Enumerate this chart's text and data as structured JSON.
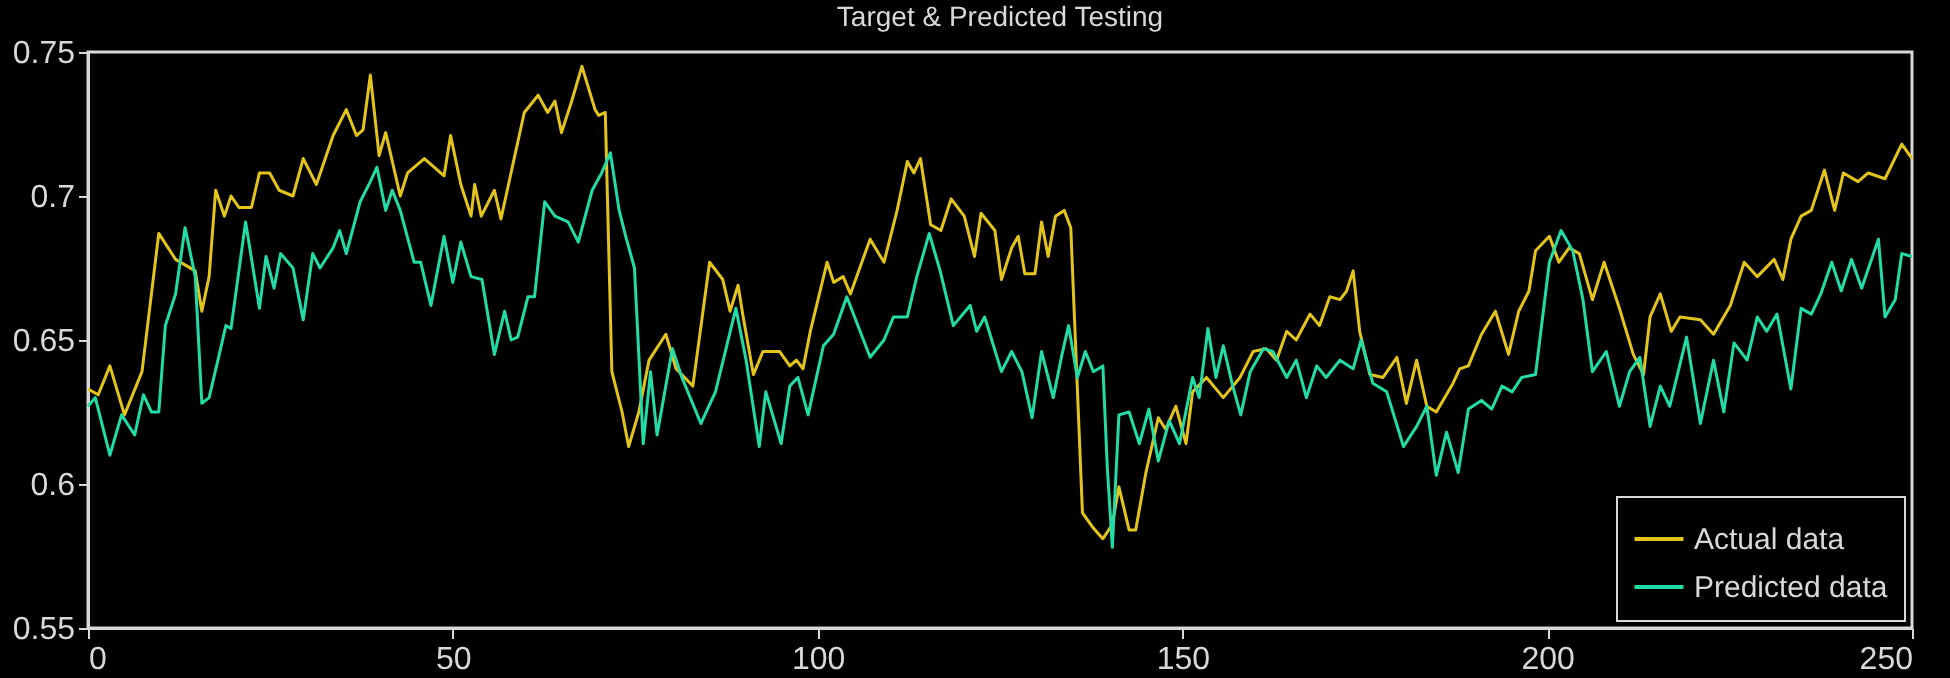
{
  "chart_data": {
    "type": "line",
    "title": "Target & Predicted Testing",
    "xlim": [
      0,
      250
    ],
    "ylim": [
      0.55,
      0.75
    ],
    "xticks": [
      0,
      50,
      100,
      150,
      200,
      250
    ],
    "yticks": [
      0.55,
      0.6,
      0.65,
      0.7,
      0.75
    ],
    "grid": false,
    "legend": "bottom right",
    "marker": "none",
    "line_style": "solid",
    "series": [
      {
        "name": "Actual data",
        "color": "#e3c41c",
        "x": [
          0,
          1.4,
          3,
          5,
          7.4,
          9.7,
          12,
          14.7,
          15.6,
          16.6,
          17.5,
          18.7,
          19.6,
          20.7,
          22.4,
          23.5,
          24.9,
          26.2,
          28.1,
          29.5,
          31.3,
          33.6,
          35.4,
          36.8,
          37.7,
          38.7,
          39.9,
          40.8,
          42.8,
          43.8,
          46.1,
          48.8,
          49.7,
          51.1,
          52.5,
          53,
          53.9,
          55.7,
          56.6,
          58.5,
          59.8,
          61.7,
          63,
          64,
          64.9,
          66.3,
          67.7,
          69.5,
          70,
          70.9,
          71.8,
          73.2,
          74.1,
          75.5,
          76.9,
          79.2,
          80.6,
          82.9,
          85.2,
          87,
          88,
          89.1,
          89.8,
          91.2,
          92.5,
          94.8,
          96.2,
          97.1,
          98,
          99,
          101.3,
          102.2,
          103.5,
          104.5,
          107.2,
          109.1,
          110.9,
          112.3,
          113.2,
          114.1,
          115.5,
          116.9,
          118.3,
          120.1,
          121.5,
          122.4,
          124.3,
          125.2,
          126.6,
          127.5,
          128.4,
          129.8,
          130.7,
          131.6,
          132.6,
          133.8,
          134.7,
          136.3,
          137.7,
          139.1,
          140.4,
          141.3,
          142.7,
          143.6,
          145,
          146.7,
          147.7,
          149.1,
          150.5,
          151.4,
          153.3,
          155.6,
          157.9,
          159.7,
          161.5,
          162.9,
          164.3,
          165.6,
          167.5,
          168.8,
          170.2,
          171.6,
          172.5,
          173.4,
          174.3,
          175.7,
          177.5,
          179.4,
          180.7,
          182.1,
          183.5,
          184.8,
          187.1,
          188,
          189.2,
          191,
          192.9,
          194.7,
          196.1,
          197.5,
          198.4,
          200.3,
          201.6,
          203,
          204.4,
          206.2,
          207.8,
          209.9,
          211.8,
          213.2,
          214.1,
          215.5,
          217,
          218.2,
          221,
          222.8,
          225.1,
          227,
          228.8,
          231.1,
          232.3,
          233.4,
          234.8,
          236.2,
          238,
          239.4,
          240.6,
          242.6,
          244,
          246.3,
          248.6,
          250
        ],
        "values": [
          0.633,
          0.631,
          0.641,
          0.624,
          0.639,
          0.687,
          0.678,
          0.674,
          0.66,
          0.672,
          0.702,
          0.693,
          0.7,
          0.696,
          0.696,
          0.708,
          0.708,
          0.702,
          0.7,
          0.713,
          0.704,
          0.721,
          0.73,
          0.721,
          0.723,
          0.742,
          0.714,
          0.722,
          0.7,
          0.708,
          0.713,
          0.707,
          0.721,
          0.704,
          0.693,
          0.704,
          0.693,
          0.702,
          0.692,
          0.714,
          0.729,
          0.735,
          0.729,
          0.733,
          0.722,
          0.733,
          0.745,
          0.73,
          0.728,
          0.729,
          0.639,
          0.625,
          0.613,
          0.625,
          0.643,
          0.652,
          0.64,
          0.634,
          0.677,
          0.671,
          0.66,
          0.669,
          0.658,
          0.638,
          0.646,
          0.646,
          0.641,
          0.643,
          0.64,
          0.653,
          0.677,
          0.67,
          0.672,
          0.666,
          0.685,
          0.677,
          0.695,
          0.712,
          0.708,
          0.713,
          0.69,
          0.688,
          0.699,
          0.693,
          0.679,
          0.694,
          0.688,
          0.671,
          0.682,
          0.686,
          0.673,
          0.673,
          0.691,
          0.679,
          0.693,
          0.695,
          0.689,
          0.59,
          0.585,
          0.581,
          0.586,
          0.599,
          0.584,
          0.584,
          0.604,
          0.623,
          0.619,
          0.627,
          0.614,
          0.632,
          0.637,
          0.63,
          0.637,
          0.646,
          0.647,
          0.643,
          0.653,
          0.65,
          0.659,
          0.655,
          0.665,
          0.664,
          0.667,
          0.674,
          0.653,
          0.638,
          0.637,
          0.644,
          0.628,
          0.643,
          0.627,
          0.625,
          0.635,
          0.64,
          0.641,
          0.652,
          0.66,
          0.645,
          0.66,
          0.667,
          0.681,
          0.686,
          0.677,
          0.682,
          0.68,
          0.664,
          0.677,
          0.661,
          0.645,
          0.638,
          0.658,
          0.666,
          0.653,
          0.658,
          0.657,
          0.652,
          0.662,
          0.677,
          0.672,
          0.678,
          0.671,
          0.685,
          0.693,
          0.695,
          0.709,
          0.695,
          0.708,
          0.705,
          0.708,
          0.706,
          0.718,
          0.713
        ]
      },
      {
        "name": "Predicted data",
        "color": "#22dba6",
        "x": [
          0,
          1,
          3,
          4.6,
          6.4,
          7.6,
          8.7,
          9.7,
          10.6,
          12,
          13.3,
          14.7,
          15.6,
          16.6,
          17.9,
          18.9,
          19.6,
          21.6,
          23.5,
          24.4,
          25.5,
          26.4,
          28.1,
          29.5,
          30.8,
          31.8,
          33.6,
          34.5,
          35.4,
          37.3,
          38.7,
          39.6,
          40.8,
          41.7,
          42.8,
          44.7,
          45.6,
          47,
          48.8,
          50,
          51.1,
          52.5,
          54,
          55.7,
          57.1,
          58,
          58.9,
          60.3,
          61.2,
          62.6,
          64,
          65.8,
          67.2,
          69.1,
          70.4,
          71.6,
          72.8,
          73.7,
          74.9,
          76.1,
          77.1,
          78,
          80.1,
          81.4,
          84,
          86,
          88.8,
          90.2,
          92,
          92.9,
          95,
          96.2,
          97.3,
          98.7,
          100.8,
          102.2,
          104,
          107.2,
          109.1,
          110.4,
          112.3,
          113.6,
          115.3,
          116.8,
          118.6,
          120.9,
          121.8,
          122.9,
          125.2,
          126.6,
          128,
          129.4,
          130.7,
          132.3,
          133.5,
          134.4,
          135.6,
          136.7,
          137.8,
          139.1,
          139.7,
          140.4,
          141.3,
          142.7,
          144.1,
          145.4,
          146.7,
          148.2,
          149.6,
          151.4,
          152.3,
          153.5,
          154.6,
          155.6,
          156.9,
          158,
          159.3,
          161.1,
          162.4,
          164.3,
          165.6,
          167,
          168.4,
          169.7,
          171.6,
          173.4,
          174.5,
          176.1,
          178,
          180.3,
          182.1,
          183.5,
          184.8,
          186.2,
          187.8,
          189.2,
          191,
          192.4,
          193.8,
          195.2,
          196.5,
          198.4,
          200.3,
          201.9,
          203.5,
          204.9,
          206.2,
          208.1,
          209.9,
          211.3,
          212.7,
          214.1,
          215.5,
          216.8,
          219.1,
          221,
          222.8,
          224.2,
          225.6,
          227.4,
          228.8,
          230.1,
          231.5,
          233.4,
          234.8,
          236.2,
          237.5,
          239,
          240.3,
          241.7,
          243.1,
          245.4,
          246.3,
          247.7,
          248.6,
          250
        ],
        "values": [
          0.627,
          0.63,
          0.61,
          0.624,
          0.617,
          0.631,
          0.625,
          0.625,
          0.655,
          0.666,
          0.689,
          0.672,
          0.628,
          0.63,
          0.644,
          0.655,
          0.654,
          0.691,
          0.661,
          0.679,
          0.668,
          0.68,
          0.675,
          0.657,
          0.68,
          0.675,
          0.682,
          0.688,
          0.68,
          0.698,
          0.705,
          0.71,
          0.695,
          0.702,
          0.695,
          0.677,
          0.677,
          0.662,
          0.686,
          0.67,
          0.684,
          0.672,
          0.671,
          0.645,
          0.66,
          0.65,
          0.651,
          0.665,
          0.665,
          0.698,
          0.693,
          0.691,
          0.684,
          0.702,
          0.708,
          0.715,
          0.695,
          0.686,
          0.675,
          0.614,
          0.639,
          0.617,
          0.647,
          0.637,
          0.621,
          0.632,
          0.661,
          0.643,
          0.613,
          0.632,
          0.614,
          0.634,
          0.637,
          0.624,
          0.648,
          0.652,
          0.665,
          0.644,
          0.65,
          0.658,
          0.658,
          0.672,
          0.687,
          0.674,
          0.655,
          0.662,
          0.653,
          0.658,
          0.639,
          0.646,
          0.639,
          0.623,
          0.646,
          0.63,
          0.645,
          0.655,
          0.637,
          0.646,
          0.639,
          0.641,
          0.606,
          0.578,
          0.624,
          0.625,
          0.614,
          0.626,
          0.608,
          0.622,
          0.614,
          0.637,
          0.63,
          0.654,
          0.637,
          0.648,
          0.634,
          0.624,
          0.639,
          0.647,
          0.646,
          0.637,
          0.643,
          0.63,
          0.641,
          0.637,
          0.643,
          0.64,
          0.65,
          0.635,
          0.632,
          0.613,
          0.62,
          0.627,
          0.603,
          0.618,
          0.604,
          0.626,
          0.629,
          0.626,
          0.634,
          0.632,
          0.637,
          0.638,
          0.677,
          0.688,
          0.681,
          0.664,
          0.639,
          0.646,
          0.627,
          0.639,
          0.644,
          0.62,
          0.634,
          0.627,
          0.651,
          0.621,
          0.643,
          0.625,
          0.649,
          0.643,
          0.658,
          0.653,
          0.659,
          0.633,
          0.661,
          0.659,
          0.666,
          0.677,
          0.667,
          0.678,
          0.668,
          0.685,
          0.658,
          0.664,
          0.68,
          0.679
        ]
      }
    ]
  }
}
